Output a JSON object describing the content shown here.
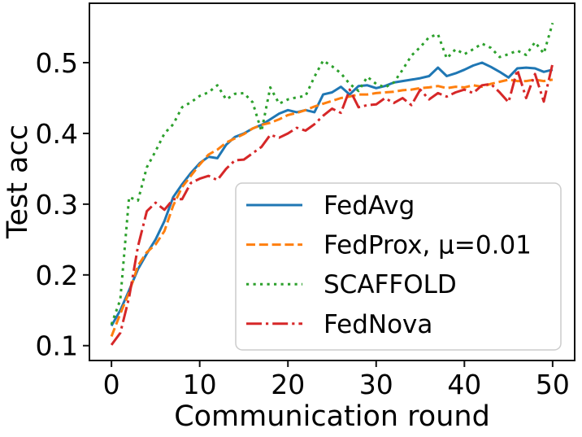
{
  "figure": {
    "background": "#ffffff",
    "text_color": "#000000",
    "axis_color": "#000000"
  },
  "chart_data": {
    "type": "line",
    "title": "",
    "xlabel": "Communication round",
    "ylabel": "Test acc",
    "xlim": [
      -2.5,
      52.5
    ],
    "ylim": [
      0.079,
      0.584
    ],
    "xticks": [
      0,
      10,
      20,
      30,
      40,
      50
    ],
    "yticks": [
      0.1,
      0.2,
      0.3,
      0.4,
      0.5
    ],
    "grid": false,
    "legend_position": "inside lower-right",
    "x": [
      0,
      1,
      2,
      3,
      4,
      5,
      6,
      7,
      8,
      9,
      10,
      11,
      12,
      13,
      14,
      15,
      16,
      17,
      18,
      19,
      20,
      21,
      22,
      23,
      24,
      25,
      26,
      27,
      28,
      29,
      30,
      31,
      32,
      33,
      34,
      35,
      36,
      37,
      38,
      39,
      40,
      41,
      42,
      43,
      44,
      45,
      46,
      47,
      48,
      49,
      50
    ],
    "series": [
      {
        "name": "FedAvg",
        "color": "#1f77b4",
        "style": "solid",
        "values": [
          0.128,
          0.15,
          0.178,
          0.208,
          0.23,
          0.25,
          0.276,
          0.31,
          0.328,
          0.344,
          0.358,
          0.367,
          0.365,
          0.384,
          0.395,
          0.4,
          0.407,
          0.412,
          0.42,
          0.428,
          0.433,
          0.43,
          0.433,
          0.43,
          0.455,
          0.458,
          0.466,
          0.455,
          0.467,
          0.468,
          0.464,
          0.467,
          0.472,
          0.474,
          0.476,
          0.478,
          0.481,
          0.493,
          0.481,
          0.485,
          0.49,
          0.496,
          0.5,
          0.494,
          0.487,
          0.479,
          0.492,
          0.493,
          0.492,
          0.487,
          0.49
        ]
      },
      {
        "name": "FedProx, μ=0.01",
        "color": "#ff7f0e",
        "style": "dashed",
        "values": [
          0.113,
          0.145,
          0.175,
          0.213,
          0.232,
          0.243,
          0.262,
          0.298,
          0.324,
          0.34,
          0.356,
          0.37,
          0.377,
          0.387,
          0.393,
          0.399,
          0.407,
          0.412,
          0.415,
          0.42,
          0.426,
          0.429,
          0.433,
          0.438,
          0.442,
          0.446,
          0.45,
          0.452,
          0.455,
          0.455,
          0.457,
          0.458,
          0.459,
          0.461,
          0.462,
          0.464,
          0.465,
          0.467,
          0.464,
          0.466,
          0.465,
          0.468,
          0.466,
          0.47,
          0.473,
          0.476,
          0.474,
          0.474,
          0.476,
          0.474,
          0.476
        ]
      },
      {
        "name": "SCAFFOLD",
        "color": "#2ca02c",
        "style": "dotted",
        "values": [
          0.13,
          0.165,
          0.31,
          0.305,
          0.352,
          0.375,
          0.4,
          0.413,
          0.437,
          0.444,
          0.453,
          0.458,
          0.468,
          0.448,
          0.456,
          0.457,
          0.444,
          0.403,
          0.465,
          0.442,
          0.448,
          0.451,
          0.453,
          0.48,
          0.503,
          0.495,
          0.485,
          0.47,
          0.46,
          0.48,
          0.47,
          0.465,
          0.472,
          0.49,
          0.51,
          0.522,
          0.536,
          0.54,
          0.506,
          0.519,
          0.512,
          0.519,
          0.527,
          0.521,
          0.508,
          0.512,
          0.517,
          0.511,
          0.529,
          0.513,
          0.556
        ]
      },
      {
        "name": "FedNova",
        "color": "#d62728",
        "style": "dashdot",
        "values": [
          0.101,
          0.118,
          0.168,
          0.24,
          0.29,
          0.302,
          0.292,
          0.307,
          0.307,
          0.33,
          0.336,
          0.34,
          0.334,
          0.35,
          0.362,
          0.363,
          0.372,
          0.381,
          0.398,
          0.394,
          0.4,
          0.408,
          0.404,
          0.413,
          0.425,
          0.435,
          0.429,
          0.462,
          0.437,
          0.44,
          0.441,
          0.45,
          0.443,
          0.45,
          0.44,
          0.462,
          0.448,
          0.457,
          0.452,
          0.458,
          0.462,
          0.457,
          0.468,
          0.47,
          0.458,
          0.444,
          0.49,
          0.45,
          0.484,
          0.445,
          0.499
        ]
      }
    ]
  }
}
